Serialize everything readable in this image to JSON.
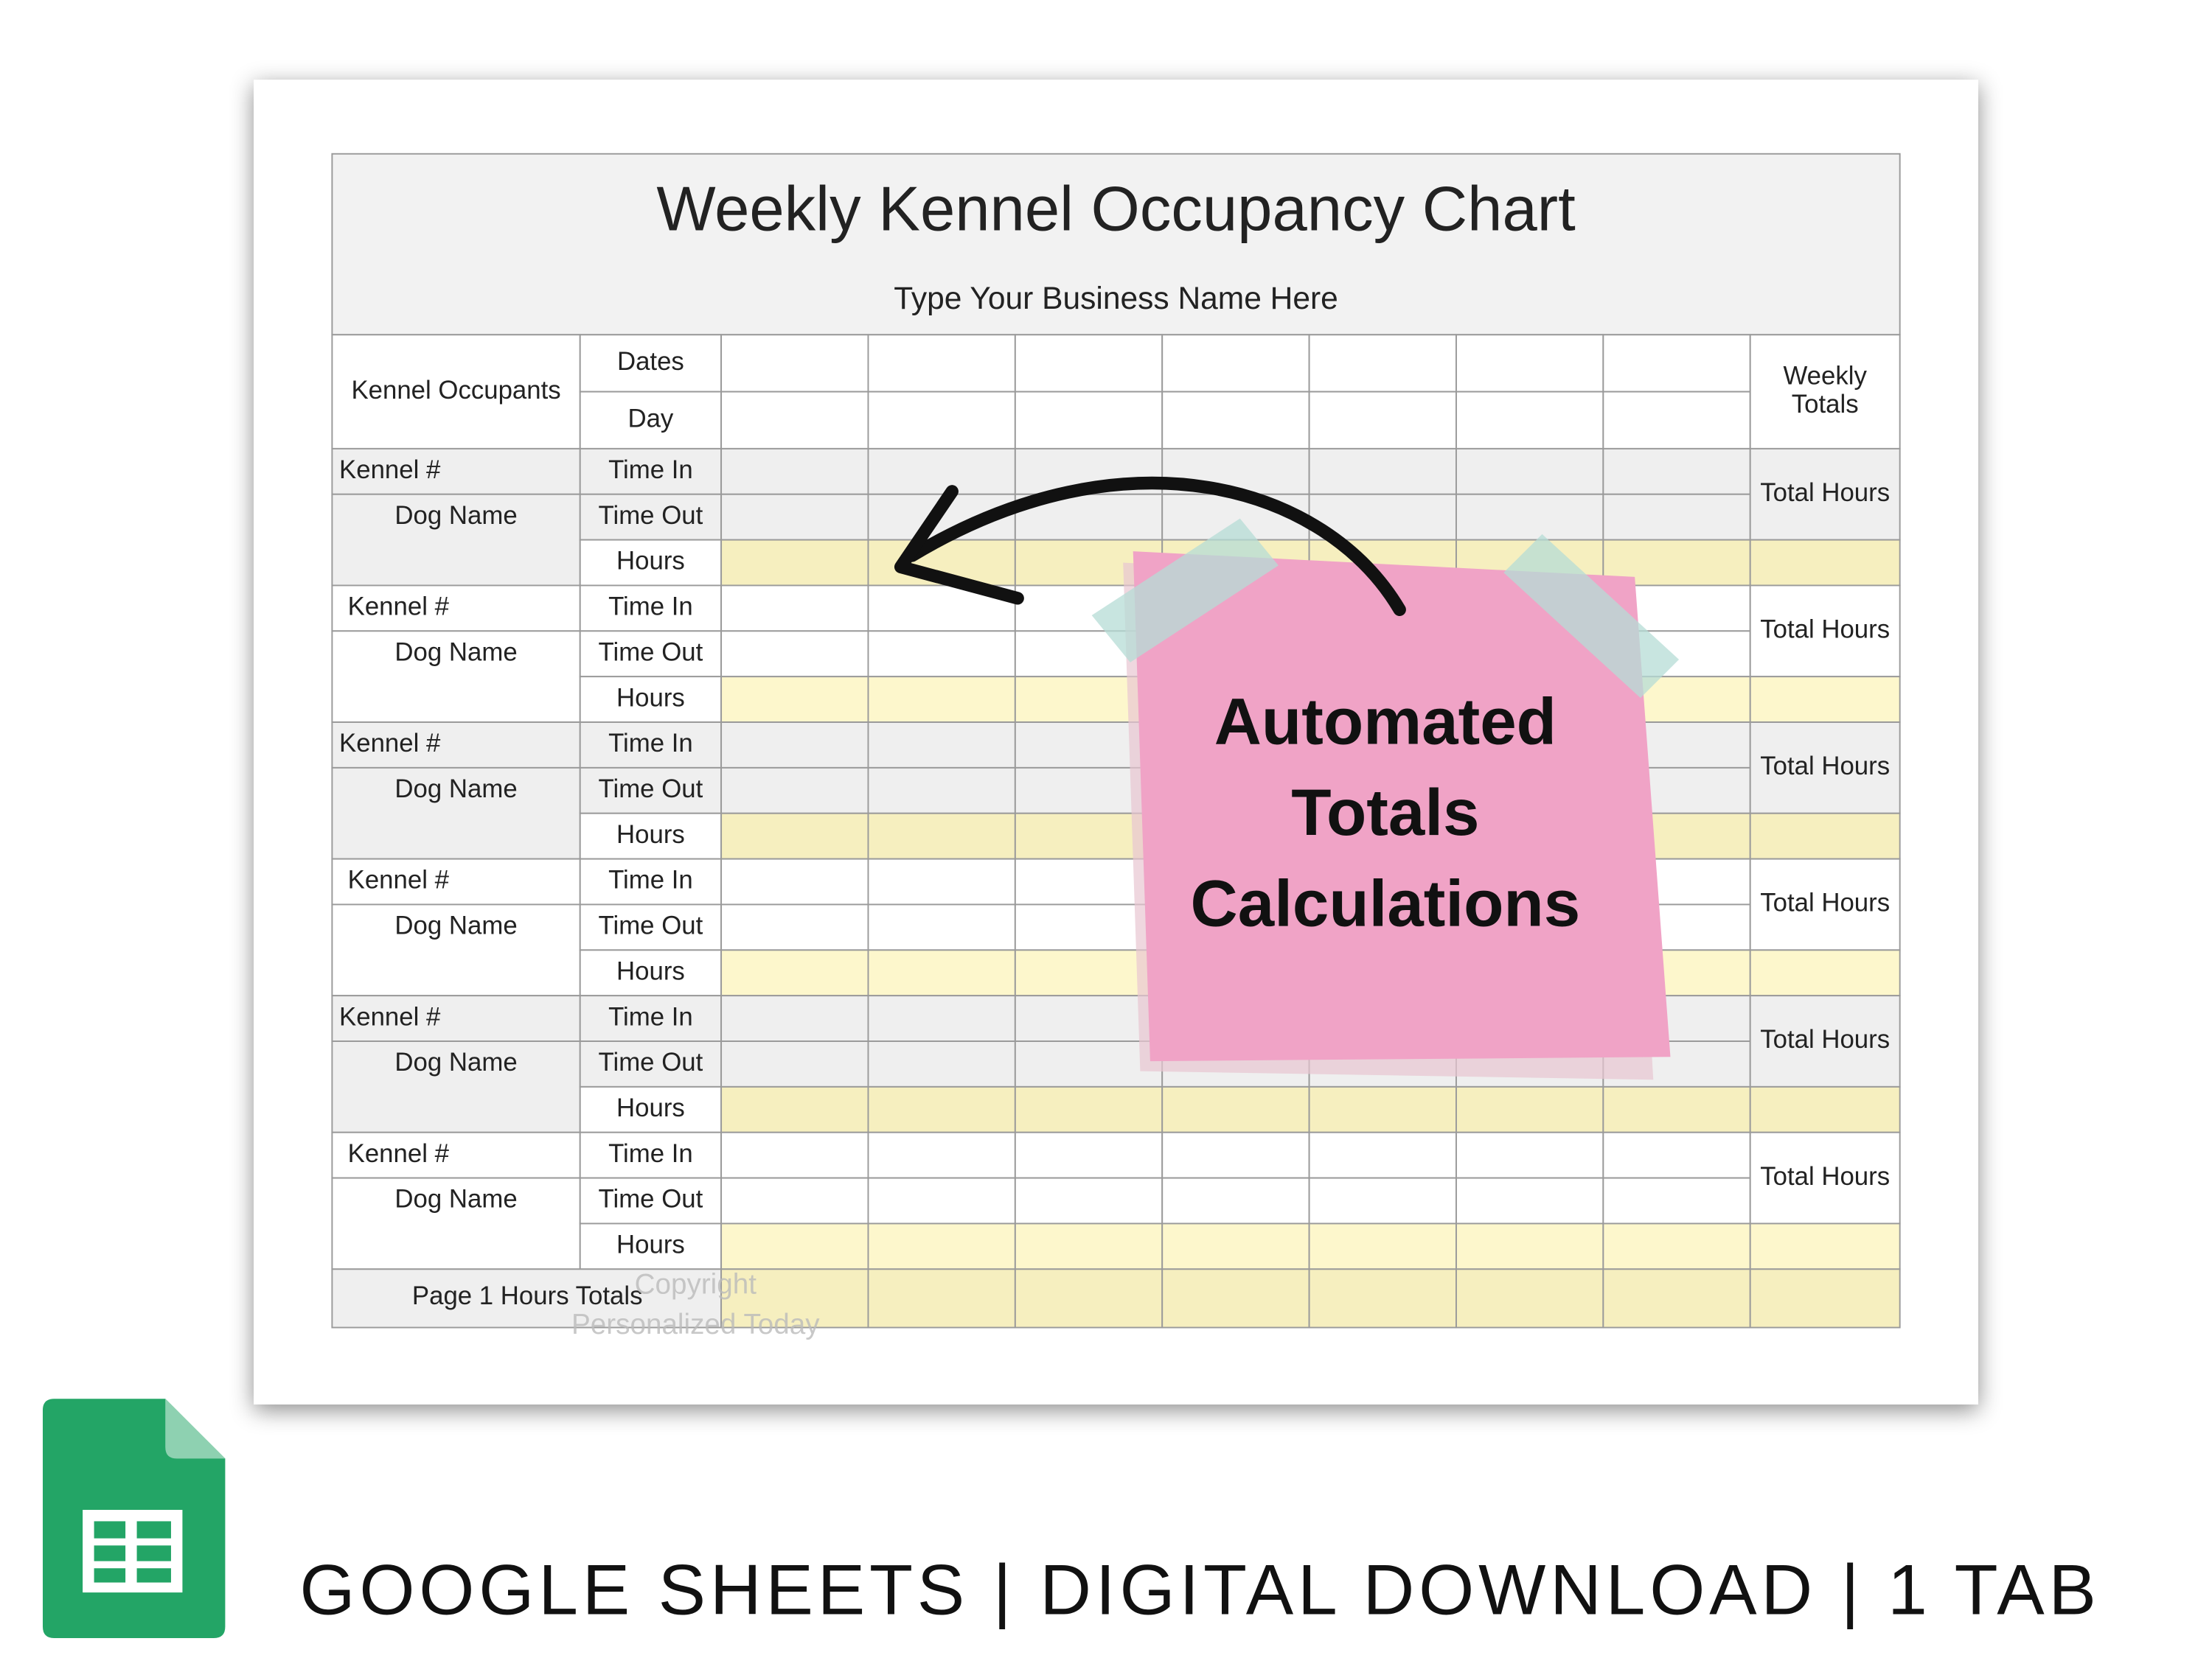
{
  "sheet": {
    "title": "Weekly Kennel Occupancy Chart",
    "subtitle": "Type Your Business Name Here",
    "header": {
      "occupants": "Kennel Occupants",
      "dates": "Dates",
      "day": "Day",
      "weekly_totals": [
        "Weekly",
        "Totals"
      ]
    },
    "blocks": [
      {
        "kennel": "Kennel #",
        "dog": "Dog Name",
        "time_in": "Time In",
        "time_out": "Time Out",
        "hours": "Hours",
        "total": "Total Hours"
      },
      {
        "kennel": "Kennel #",
        "dog": "Dog Name",
        "time_in": "Time In",
        "time_out": "Time Out",
        "hours": "Hours",
        "total": "Total Hours"
      },
      {
        "kennel": "Kennel #",
        "dog": "Dog Name",
        "time_in": "Time In",
        "time_out": "Time Out",
        "hours": "Hours",
        "total": "Total Hours"
      },
      {
        "kennel": "Kennel #",
        "dog": "Dog Name",
        "time_in": "Time In",
        "time_out": "Time Out",
        "hours": "Hours",
        "total": "Total Hours"
      },
      {
        "kennel": "Kennel #",
        "dog": "Dog Name",
        "time_in": "Time In",
        "time_out": "Time Out",
        "hours": "Hours",
        "total": "Total Hours"
      },
      {
        "kennel": "Kennel #",
        "dog": "Dog Name",
        "time_in": "Time In",
        "time_out": "Time Out",
        "hours": "Hours",
        "total": "Total Hours"
      }
    ],
    "footer": "Page 1 Hours Totals",
    "watermark": [
      "Copyright",
      "Personalized Today"
    ]
  },
  "note": [
    "Automated",
    "Totals",
    "Calculations"
  ],
  "banner": "GOOGLE SHEETS | DIGITAL DOWNLOAD | 1 TAB"
}
